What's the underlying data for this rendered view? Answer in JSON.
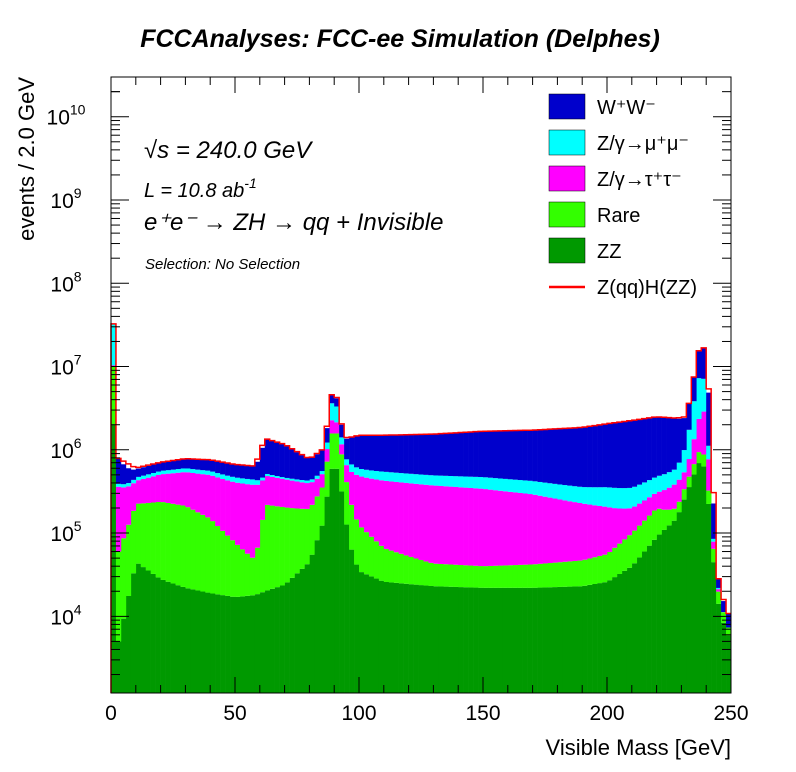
{
  "chart_data": {
    "type": "area",
    "title": "FCCAnalyses: FCC-ee Simulation (Delphes)",
    "xlabel": "Visible Mass [GeV]",
    "ylabel": "events / 2.0 GeV",
    "xlim": [
      0,
      250
    ],
    "ylim": [
      1200,
      30000000000
    ],
    "yscale": "log",
    "stacked": true,
    "legend_position": "top-right",
    "x_ticks": [
      "0",
      "50",
      "100",
      "150",
      "200",
      "250"
    ],
    "annotations": {
      "sqrt_s": "√s = 240.0 GeV",
      "lumi_base": "L = 10.8 ab",
      "lumi_exp": "-1",
      "process": "e⁺e⁻ → ZH → qq + Invisible",
      "selection": "Selection: No Selection"
    },
    "x": [
      1,
      3,
      10,
      20,
      30,
      40,
      50,
      58,
      62,
      70,
      80,
      86,
      88,
      90,
      92,
      94,
      96,
      98,
      100,
      110,
      130,
      150,
      170,
      190,
      200,
      210,
      220,
      228,
      232,
      236,
      238,
      240,
      242,
      244,
      246,
      248,
      250
    ],
    "series": [
      {
        "name": "ZZ",
        "color": "#009900",
        "values": [
          2000000,
          5000,
          45000,
          28000,
          22000,
          19000,
          17000,
          18000,
          20000,
          24000,
          45000,
          150000,
          500000,
          700000,
          500000,
          200000,
          80000,
          50000,
          35000,
          26000,
          23000,
          22000,
          22000,
          23000,
          26000,
          40000,
          90000,
          150000,
          300000,
          600000,
          800000,
          500000,
          100000,
          20000,
          10000,
          7000,
          5000
        ]
      },
      {
        "name": "Rare",
        "color": "#33ff00",
        "values": [
          8000000,
          55000,
          180000,
          210000,
          190000,
          130000,
          60000,
          30000,
          200000,
          180000,
          150000,
          250000,
          800000,
          1200000,
          800000,
          400000,
          200000,
          120000,
          90000,
          40000,
          20000,
          18000,
          20000,
          24000,
          30000,
          60000,
          110000,
          50000,
          100000,
          200000,
          300000,
          200000,
          50000,
          8000,
          4000,
          2000,
          1000
        ]
      },
      {
        "name": "Z/γ→τ⁺τ⁻",
        "color": "#ff00ff",
        "values": [
          300000,
          300000,
          200000,
          270000,
          330000,
          350000,
          330000,
          330000,
          270000,
          240000,
          200000,
          150000,
          600000,
          800000,
          400000,
          200000,
          300000,
          350000,
          360000,
          360000,
          330000,
          300000,
          250000,
          180000,
          150000,
          100000,
          110000,
          200000,
          200000,
          1000000,
          2000000,
          2000000,
          100000,
          2000,
          1000,
          0,
          0
        ]
      },
      {
        "name": "Z/γ→μ⁺μ⁻",
        "color": "#00ffff",
        "values": [
          22000000,
          30000,
          40000,
          50000,
          60000,
          60000,
          60000,
          60000,
          30000,
          20000,
          30000,
          50000,
          800000,
          2300000,
          600000,
          100000,
          130000,
          120000,
          110000,
          120000,
          120000,
          130000,
          130000,
          130000,
          150000,
          150000,
          170000,
          200000,
          600000,
          4000000,
          6000000,
          3000000,
          40000,
          1000,
          500,
          0,
          0
        ]
      },
      {
        "name": "W⁺W⁻",
        "color": "#0000cc",
        "values": [
          200000,
          400000,
          120000,
          150000,
          180000,
          200000,
          200000,
          200000,
          850000,
          700000,
          350000,
          450000,
          800000,
          1000000,
          700000,
          500000,
          700000,
          800000,
          900000,
          950000,
          1050000,
          1200000,
          1300000,
          1500000,
          1700000,
          1900000,
          2000000,
          1800000,
          1300000,
          5000000,
          13000000,
          7000000,
          2000000,
          10000,
          4000,
          4000,
          3000
        ]
      },
      {
        "name": "Z(qq)H(ZZ)",
        "color": "#ff0000",
        "style": "line",
        "values": [
          32500000,
          790000,
          605000,
          708000,
          782000,
          759000,
          667000,
          638000,
          1370000,
          1164000,
          775000,
          1050000,
          3500000,
          6000000,
          3000000,
          1400000,
          1410000,
          1440000,
          1495000,
          1496000,
          1543000,
          1670000,
          1722000,
          1857000,
          2056000,
          2250000,
          2490000,
          2400000,
          2500000,
          10800000,
          22100000,
          12700000,
          2290000,
          41000,
          19500,
          13000,
          9000
        ]
      }
    ]
  }
}
